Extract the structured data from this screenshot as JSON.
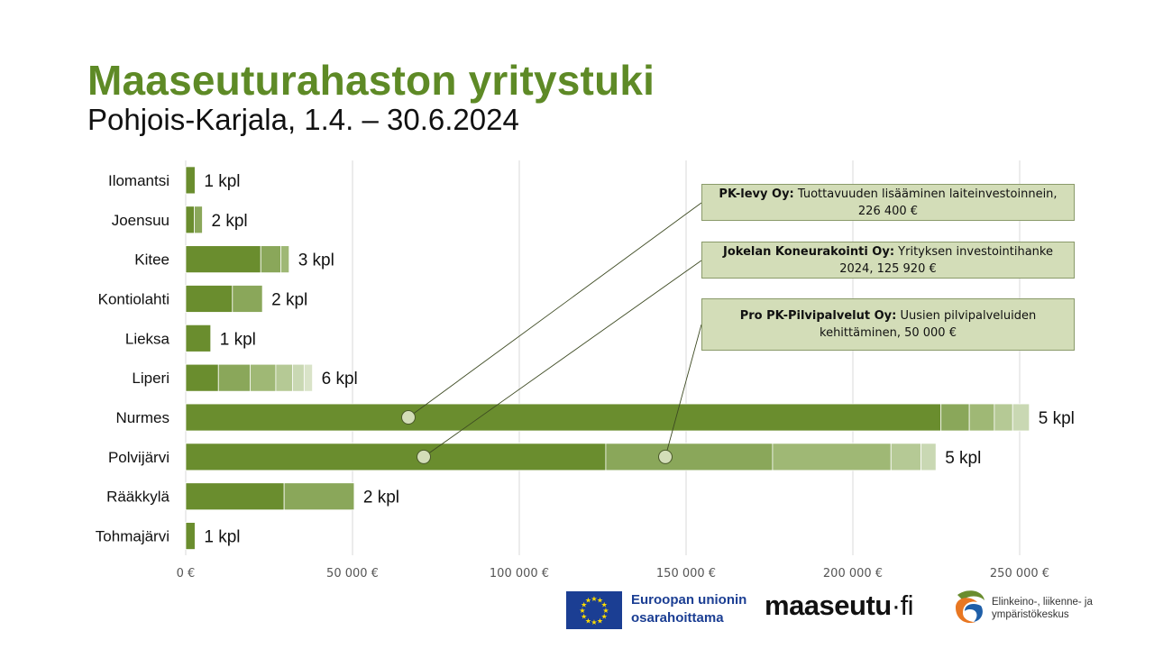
{
  "header": {
    "title": "Maaseuturahaston yritystuki",
    "subtitle": "Pohjois-Karjala,  1.4. – 30.6.2024"
  },
  "chart_data": {
    "type": "bar",
    "orientation": "horizontal",
    "stacked": true,
    "xlim": [
      0,
      260000
    ],
    "x_ticks": [
      0,
      50000,
      100000,
      150000,
      200000,
      250000
    ],
    "x_tick_labels": [
      "0 €",
      "50 000 €",
      "100 000 €",
      "150 000 €",
      "200 000 €",
      "250 000 €"
    ],
    "grid": "vertical",
    "categories": [
      "Ilomantsi",
      "Joensuu",
      "Kitee",
      "Kontiolahti",
      "Lieksa",
      "Liperi",
      "Nurmes",
      "Polvijärvi",
      "Rääkkylä",
      "Tohmajärvi"
    ],
    "segments": [
      [
        2800
      ],
      [
        2600,
        2400
      ],
      [
        22500,
        6000,
        2500
      ],
      [
        14000,
        9000
      ],
      [
        7500
      ],
      [
        9800,
        9500,
        7700,
        5000,
        3500,
        2500
      ],
      [
        226400,
        8500,
        7500,
        5500,
        5000
      ],
      [
        125920,
        50000,
        35500,
        9000,
        4500
      ],
      [
        29500,
        21000
      ],
      [
        2800
      ]
    ],
    "count_labels": [
      "1 kpl",
      "2 kpl",
      "3 kpl",
      "2 kpl",
      "1 kpl",
      "6 kpl",
      "5 kpl",
      "5 kpl",
      "2 kpl",
      "1 kpl"
    ],
    "segment_colors": [
      "#6a8d2e",
      "#8aa75a",
      "#9fb875",
      "#b5c995",
      "#c9d8b3",
      "#d9e3c8"
    ],
    "annotations": [
      {
        "company": "PK-levy Oy:",
        "text": " Tuottavuuden lisääminen laiteinvestoinnein, 226 400 €",
        "category": "Nurmes",
        "segment": 0
      },
      {
        "company": "Jokelan Koneurakointi Oy:",
        "text": " Yrityksen investointihanke 2024, 125 920 €",
        "category": "Polvijärvi",
        "segment": 0
      },
      {
        "company": "Pro PK-Pilvipalvelut Oy:",
        "text": " Uusien pilvipalveluiden kehittäminen, 50 000 €",
        "category": "Polvijärvi",
        "segment": 1
      }
    ]
  },
  "footer": {
    "eu_line1": "Euroopan unionin",
    "eu_line2": "osarahoittama",
    "maaseutu": "maaseutu",
    "maaseutu_dot": "·",
    "maaseutu_fi": "fi",
    "ely_line1": "Elinkeino-, liikenne- ja",
    "ely_line2": "ympäristökeskus"
  }
}
